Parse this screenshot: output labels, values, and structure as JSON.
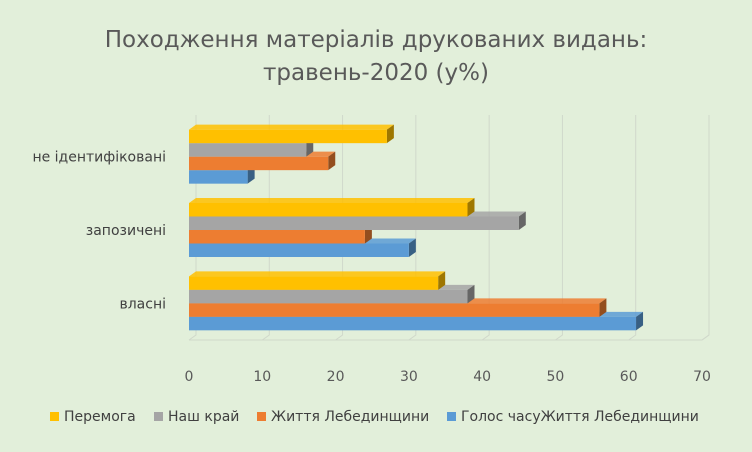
{
  "chart_data": {
    "type": "bar",
    "orientation": "horizontal",
    "style": "3d-clustered",
    "title_lines": [
      "Походження матеріалів друкованих видань:",
      "травень-2020 (у%)"
    ],
    "categories": [
      "власні",
      "запозичені",
      "не ідентифіковані"
    ],
    "series": [
      {
        "name": "Перемога",
        "color": "#ffc000",
        "values": [
          34,
          38,
          27
        ]
      },
      {
        "name": "Наш край",
        "color": "#a5a5a5",
        "values": [
          38,
          45,
          16
        ]
      },
      {
        "name": "Життя Лебединщини",
        "color": "#ed7d31",
        "values": [
          56,
          24,
          19
        ]
      },
      {
        "name": "Голос часуЖиття Лебединщини",
        "color": "#5b9bd5",
        "values": [
          61,
          30,
          8
        ]
      }
    ],
    "xlim": [
      0,
      70
    ],
    "x_ticks": [
      "0",
      "10",
      "20",
      "30",
      "40",
      "50",
      "60",
      "70"
    ],
    "grid": true,
    "legend_position": "bottom",
    "background_color": "#e2efda"
  }
}
